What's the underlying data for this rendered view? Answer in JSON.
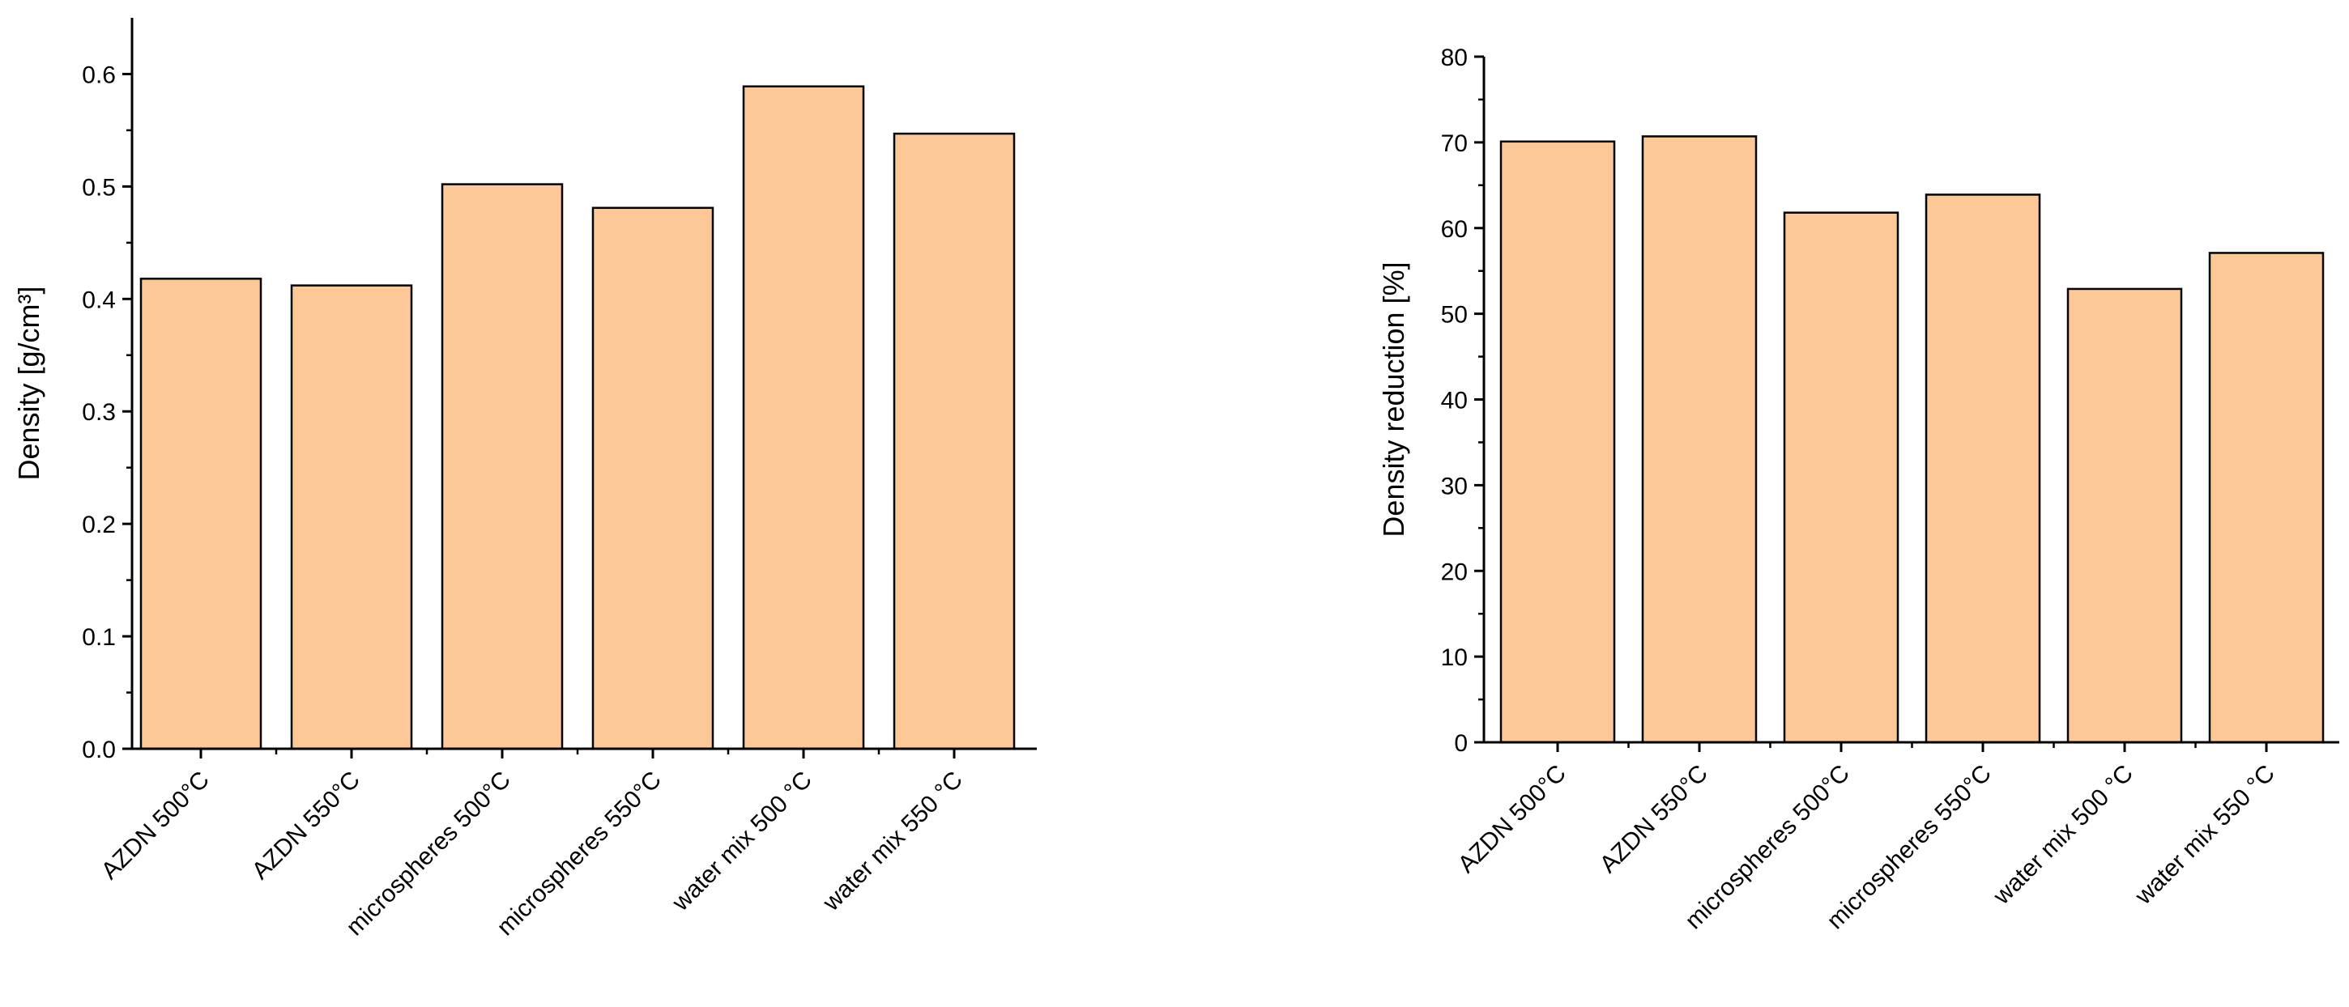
{
  "chart_data": [
    {
      "type": "bar",
      "title": "",
      "xlabel": "",
      "ylabel": "Density [g/cm³]",
      "categories": [
        "AZDN 500°C",
        "AZDN 550°C",
        "microspheres 500°C",
        "microspheres 550°C",
        "water mix 500 °C",
        "water mix 550 °C"
      ],
      "values": [
        0.418,
        0.412,
        0.502,
        0.481,
        0.589,
        0.547
      ],
      "ylim": [
        0,
        0.65
      ],
      "yticks": [
        0.0,
        0.1,
        0.2,
        0.3,
        0.4,
        0.5,
        0.6
      ],
      "ytick_labels": [
        "0.0",
        "0.1",
        "0.2",
        "0.3",
        "0.4",
        "0.5",
        "0.6"
      ],
      "grid": false,
      "bar_color": "#fdc897",
      "bar_edge_color": "#000000"
    },
    {
      "type": "bar",
      "title": "",
      "xlabel": "",
      "ylabel": "Density reduction [%]",
      "categories": [
        "AZDN 500°C",
        "AZDN 550°C",
        "microspheres 500°C",
        "microspheres 550°C",
        "water mix 500 °C",
        "water mix 550 °C"
      ],
      "values": [
        70.1,
        70.7,
        61.8,
        63.9,
        52.9,
        57.1
      ],
      "ylim": [
        0,
        80
      ],
      "yticks": [
        0,
        10,
        20,
        30,
        40,
        50,
        60,
        70,
        80
      ],
      "ytick_labels": [
        "0",
        "10",
        "20",
        "30",
        "40",
        "50",
        "60",
        "70",
        "80"
      ],
      "grid": false,
      "bar_color": "#fdc897",
      "bar_edge_color": "#000000"
    }
  ]
}
